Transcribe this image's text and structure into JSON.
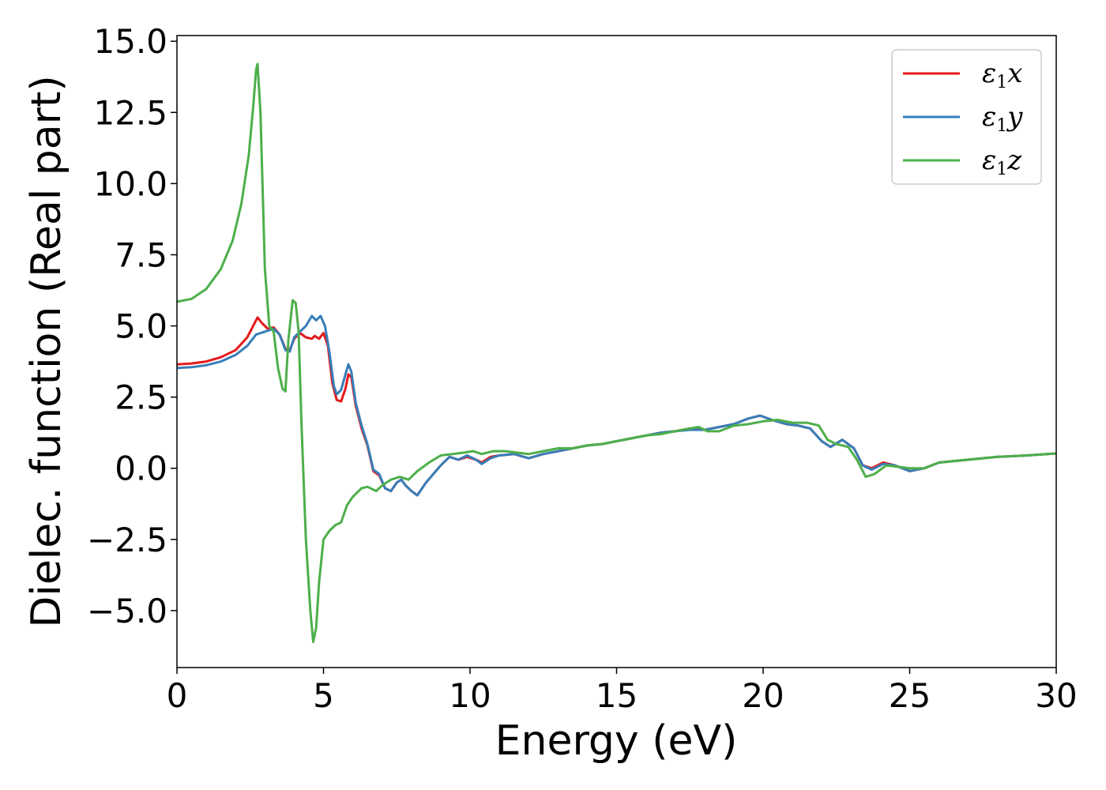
{
  "chart_data": {
    "type": "line",
    "title": "",
    "xlabel": "Energy (eV)",
    "ylabel": "Dielec. function (Real part)",
    "xlim": [
      0,
      30
    ],
    "ylim": [
      -7.0,
      15.2
    ],
    "xticks": [
      0,
      5,
      10,
      15,
      20,
      25,
      30
    ],
    "yticks": [
      -5.0,
      -2.5,
      0.0,
      2.5,
      5.0,
      7.5,
      10.0,
      12.5,
      15.0
    ],
    "xtick_labels": [
      "0",
      "5",
      "10",
      "15",
      "20",
      "25",
      "30"
    ],
    "ytick_labels": [
      "−5.0",
      "−2.5",
      "0.0",
      "2.5",
      "5.0",
      "7.5",
      "10.0",
      "12.5",
      "15.0"
    ],
    "grid": false,
    "legend_position": "top-right",
    "series": [
      {
        "name": "ε1x",
        "legend": {
          "symbol": "ε",
          "sub": "1",
          "var": "x"
        },
        "color": "#e41a1c",
        "points": [
          [
            0,
            3.65
          ],
          [
            0.5,
            3.68
          ],
          [
            1.0,
            3.75
          ],
          [
            1.5,
            3.9
          ],
          [
            2.0,
            4.15
          ],
          [
            2.4,
            4.6
          ],
          [
            2.65,
            5.1
          ],
          [
            2.75,
            5.3
          ],
          [
            2.9,
            5.1
          ],
          [
            3.1,
            4.9
          ],
          [
            3.3,
            4.95
          ],
          [
            3.5,
            4.7
          ],
          [
            3.7,
            4.2
          ],
          [
            3.85,
            4.15
          ],
          [
            4.0,
            4.55
          ],
          [
            4.2,
            4.75
          ],
          [
            4.4,
            4.6
          ],
          [
            4.6,
            4.55
          ],
          [
            4.7,
            4.65
          ],
          [
            4.85,
            4.55
          ],
          [
            5.0,
            4.75
          ],
          [
            5.15,
            4.3
          ],
          [
            5.3,
            3.0
          ],
          [
            5.45,
            2.4
          ],
          [
            5.6,
            2.35
          ],
          [
            5.75,
            2.8
          ],
          [
            5.85,
            3.3
          ],
          [
            5.95,
            3.2
          ],
          [
            6.1,
            2.2
          ],
          [
            6.3,
            1.4
          ],
          [
            6.5,
            0.8
          ],
          [
            6.7,
            -0.1
          ],
          [
            6.9,
            -0.25
          ],
          [
            7.1,
            -0.7
          ],
          [
            7.3,
            -0.8
          ],
          [
            7.5,
            -0.5
          ],
          [
            7.65,
            -0.4
          ],
          [
            7.8,
            -0.6
          ],
          [
            8.0,
            -0.8
          ],
          [
            8.2,
            -0.95
          ],
          [
            8.5,
            -0.5
          ],
          [
            9.0,
            0.1
          ],
          [
            9.3,
            0.4
          ],
          [
            9.6,
            0.3
          ],
          [
            9.9,
            0.4
          ],
          [
            10.2,
            0.3
          ],
          [
            10.4,
            0.2
          ],
          [
            10.7,
            0.4
          ],
          [
            11.0,
            0.45
          ],
          [
            11.5,
            0.5
          ],
          [
            12.0,
            0.35
          ],
          [
            12.5,
            0.5
          ],
          [
            13.0,
            0.6
          ],
          [
            13.5,
            0.7
          ],
          [
            14.0,
            0.8
          ],
          [
            14.5,
            0.85
          ],
          [
            15.0,
            0.95
          ],
          [
            15.5,
            1.05
          ],
          [
            16.0,
            1.15
          ],
          [
            16.5,
            1.25
          ],
          [
            17.0,
            1.3
          ],
          [
            17.5,
            1.4
          ],
          [
            18.0,
            1.35
          ],
          [
            18.5,
            1.45
          ],
          [
            19.0,
            1.55
          ],
          [
            19.5,
            1.75
          ],
          [
            19.9,
            1.85
          ],
          [
            20.3,
            1.7
          ],
          [
            20.8,
            1.55
          ],
          [
            21.2,
            1.5
          ],
          [
            21.6,
            1.4
          ],
          [
            22.0,
            0.95
          ],
          [
            22.3,
            0.75
          ],
          [
            22.7,
            1.0
          ],
          [
            23.1,
            0.7
          ],
          [
            23.4,
            0.1
          ],
          [
            23.7,
            0.0
          ],
          [
            24.1,
            0.2
          ],
          [
            24.5,
            0.1
          ],
          [
            25.0,
            -0.1
          ],
          [
            25.5,
            0.0
          ],
          [
            26.0,
            0.2
          ],
          [
            27.0,
            0.3
          ],
          [
            28.0,
            0.4
          ],
          [
            29.0,
            0.45
          ],
          [
            30.0,
            0.52
          ]
        ]
      },
      {
        "name": "ε1y",
        "legend": {
          "symbol": "ε",
          "sub": "1",
          "var": "y"
        },
        "color": "#377eb8",
        "points": [
          [
            0,
            3.52
          ],
          [
            0.5,
            3.55
          ],
          [
            1.0,
            3.62
          ],
          [
            1.5,
            3.75
          ],
          [
            2.0,
            3.98
          ],
          [
            2.4,
            4.3
          ],
          [
            2.7,
            4.7
          ],
          [
            3.0,
            4.8
          ],
          [
            3.3,
            4.9
          ],
          [
            3.5,
            4.7
          ],
          [
            3.7,
            4.15
          ],
          [
            3.85,
            4.1
          ],
          [
            4.0,
            4.6
          ],
          [
            4.2,
            4.8
          ],
          [
            4.4,
            5.0
          ],
          [
            4.6,
            5.35
          ],
          [
            4.75,
            5.2
          ],
          [
            4.9,
            5.35
          ],
          [
            5.05,
            5.0
          ],
          [
            5.2,
            4.1
          ],
          [
            5.35,
            2.9
          ],
          [
            5.45,
            2.6
          ],
          [
            5.6,
            2.75
          ],
          [
            5.75,
            3.3
          ],
          [
            5.85,
            3.65
          ],
          [
            5.95,
            3.4
          ],
          [
            6.1,
            2.3
          ],
          [
            6.3,
            1.5
          ],
          [
            6.5,
            0.85
          ],
          [
            6.7,
            -0.05
          ],
          [
            6.9,
            -0.2
          ],
          [
            7.1,
            -0.7
          ],
          [
            7.3,
            -0.8
          ],
          [
            7.5,
            -0.5
          ],
          [
            7.65,
            -0.4
          ],
          [
            7.8,
            -0.6
          ],
          [
            8.0,
            -0.8
          ],
          [
            8.2,
            -0.95
          ],
          [
            8.5,
            -0.5
          ],
          [
            9.0,
            0.1
          ],
          [
            9.3,
            0.4
          ],
          [
            9.6,
            0.3
          ],
          [
            9.9,
            0.45
          ],
          [
            10.2,
            0.3
          ],
          [
            10.4,
            0.15
          ],
          [
            10.7,
            0.35
          ],
          [
            11.0,
            0.45
          ],
          [
            11.5,
            0.5
          ],
          [
            12.0,
            0.35
          ],
          [
            12.5,
            0.5
          ],
          [
            13.0,
            0.6
          ],
          [
            13.5,
            0.7
          ],
          [
            14.0,
            0.8
          ],
          [
            14.5,
            0.85
          ],
          [
            15.0,
            0.95
          ],
          [
            15.5,
            1.05
          ],
          [
            16.0,
            1.15
          ],
          [
            16.5,
            1.25
          ],
          [
            17.0,
            1.3
          ],
          [
            17.5,
            1.35
          ],
          [
            18.0,
            1.35
          ],
          [
            18.5,
            1.45
          ],
          [
            19.0,
            1.55
          ],
          [
            19.5,
            1.75
          ],
          [
            19.9,
            1.85
          ],
          [
            20.3,
            1.7
          ],
          [
            20.8,
            1.55
          ],
          [
            21.2,
            1.5
          ],
          [
            21.6,
            1.4
          ],
          [
            22.0,
            0.95
          ],
          [
            22.3,
            0.75
          ],
          [
            22.7,
            1.0
          ],
          [
            23.1,
            0.7
          ],
          [
            23.4,
            0.1
          ],
          [
            23.7,
            -0.05
          ],
          [
            24.1,
            0.15
          ],
          [
            24.5,
            0.1
          ],
          [
            25.0,
            -0.1
          ],
          [
            25.5,
            0.0
          ],
          [
            26.0,
            0.2
          ],
          [
            27.0,
            0.3
          ],
          [
            28.0,
            0.4
          ],
          [
            29.0,
            0.45
          ],
          [
            30.0,
            0.52
          ]
        ]
      },
      {
        "name": "ε1z",
        "legend": {
          "symbol": "ε",
          "sub": "1",
          "var": "z"
        },
        "color": "#4daf4a",
        "points": [
          [
            0,
            5.85
          ],
          [
            0.5,
            5.95
          ],
          [
            1.0,
            6.3
          ],
          [
            1.5,
            7.0
          ],
          [
            1.9,
            8.0
          ],
          [
            2.2,
            9.3
          ],
          [
            2.45,
            11.0
          ],
          [
            2.6,
            12.7
          ],
          [
            2.7,
            14.0
          ],
          [
            2.75,
            14.2
          ],
          [
            2.85,
            12.5
          ],
          [
            3.0,
            7.0
          ],
          [
            3.15,
            5.0
          ],
          [
            3.3,
            4.8
          ],
          [
            3.45,
            3.5
          ],
          [
            3.6,
            2.8
          ],
          [
            3.7,
            2.7
          ],
          [
            3.8,
            4.5
          ],
          [
            3.95,
            5.9
          ],
          [
            4.05,
            5.8
          ],
          [
            4.15,
            4.8
          ],
          [
            4.25,
            1.5
          ],
          [
            4.4,
            -2.5
          ],
          [
            4.55,
            -5.0
          ],
          [
            4.65,
            -6.1
          ],
          [
            4.75,
            -5.6
          ],
          [
            4.85,
            -4.0
          ],
          [
            5.0,
            -2.5
          ],
          [
            5.2,
            -2.2
          ],
          [
            5.4,
            -2.0
          ],
          [
            5.6,
            -1.9
          ],
          [
            5.8,
            -1.3
          ],
          [
            6.0,
            -1.0
          ],
          [
            6.3,
            -0.7
          ],
          [
            6.5,
            -0.65
          ],
          [
            6.8,
            -0.8
          ],
          [
            7.0,
            -0.6
          ],
          [
            7.3,
            -0.4
          ],
          [
            7.6,
            -0.3
          ],
          [
            7.9,
            -0.4
          ],
          [
            8.2,
            -0.1
          ],
          [
            8.6,
            0.2
          ],
          [
            9.0,
            0.45
          ],
          [
            9.4,
            0.5
          ],
          [
            9.8,
            0.55
          ],
          [
            10.1,
            0.6
          ],
          [
            10.4,
            0.5
          ],
          [
            10.8,
            0.6
          ],
          [
            11.2,
            0.6
          ],
          [
            11.6,
            0.55
          ],
          [
            12.0,
            0.5
          ],
          [
            12.5,
            0.6
          ],
          [
            13.0,
            0.7
          ],
          [
            13.5,
            0.7
          ],
          [
            14.0,
            0.8
          ],
          [
            14.5,
            0.85
          ],
          [
            15.0,
            0.95
          ],
          [
            15.5,
            1.05
          ],
          [
            16.0,
            1.15
          ],
          [
            16.5,
            1.2
          ],
          [
            17.0,
            1.3
          ],
          [
            17.5,
            1.4
          ],
          [
            17.8,
            1.45
          ],
          [
            18.1,
            1.3
          ],
          [
            18.5,
            1.3
          ],
          [
            19.0,
            1.5
          ],
          [
            19.5,
            1.55
          ],
          [
            20.0,
            1.65
          ],
          [
            20.5,
            1.7
          ],
          [
            21.0,
            1.6
          ],
          [
            21.5,
            1.6
          ],
          [
            21.9,
            1.5
          ],
          [
            22.2,
            1.0
          ],
          [
            22.5,
            0.85
          ],
          [
            22.9,
            0.75
          ],
          [
            23.2,
            0.3
          ],
          [
            23.5,
            -0.3
          ],
          [
            23.8,
            -0.2
          ],
          [
            24.2,
            0.1
          ],
          [
            24.6,
            0.05
          ],
          [
            25.0,
            0.0
          ],
          [
            25.5,
            0.0
          ],
          [
            26.0,
            0.2
          ],
          [
            27.0,
            0.3
          ],
          [
            28.0,
            0.4
          ],
          [
            29.0,
            0.45
          ],
          [
            30.0,
            0.52
          ]
        ]
      }
    ]
  }
}
